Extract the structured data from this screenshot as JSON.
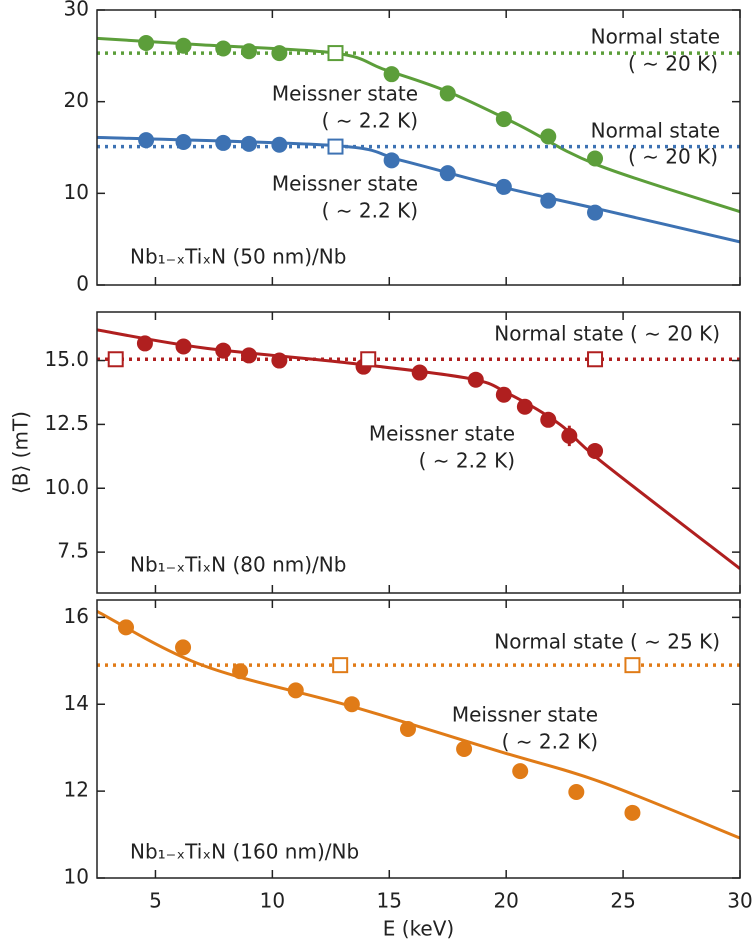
{
  "chart_data": [
    {
      "type": "scatter",
      "xlim": [
        2.5,
        30
      ],
      "xticks": [
        5,
        10,
        15,
        20,
        25,
        30
      ],
      "ylim": [
        0,
        30
      ],
      "yticks": [
        0,
        10,
        20,
        30
      ],
      "annotations": [
        "Normal state",
        "( ∼ 20 K)",
        "Meissner state",
        "( ∼ 2.2 K)",
        "Normal state",
        "( ∼ 20 K)",
        "Meissner state",
        "( ∼ 2.2 K)",
        "Nb₁₋ₓTiₓN (50 nm)/Nb"
      ],
      "series": [
        {
          "style": "line",
          "color": "#5c9e3a",
          "x": [
            2.5,
            7,
            12.7,
            14.8,
            17.5,
            20.5,
            23.9,
            30
          ],
          "values": [
            26.9,
            26.2,
            25.3,
            23.5,
            21.1,
            17.5,
            13.1,
            8.0
          ]
        },
        {
          "style": "dotted",
          "color": "#5c9e3a",
          "x": [
            2.5,
            30
          ],
          "values": [
            25.3,
            25.3
          ]
        },
        {
          "style": "markers",
          "color": "#5c9e3a",
          "x": [
            4.6,
            6.2,
            7.9,
            9.0,
            10.3,
            15.1,
            17.5,
            19.9,
            21.8,
            23.8
          ],
          "values": [
            26.4,
            26.1,
            25.8,
            25.5,
            25.3,
            23.0,
            20.9,
            18.1,
            16.2,
            13.8
          ]
        },
        {
          "style": "open-squares",
          "color": "#5c9e3a",
          "x": [
            12.7
          ],
          "values": [
            25.3
          ]
        },
        {
          "style": "line",
          "color": "#3d72b3",
          "x": [
            2.5,
            12.7,
            15.5,
            19.8,
            24.1,
            30
          ],
          "values": [
            16.1,
            15.2,
            13.6,
            10.7,
            8.2,
            4.7
          ]
        },
        {
          "style": "dotted",
          "color": "#3d72b3",
          "x": [
            2.5,
            30
          ],
          "values": [
            15.1,
            15.1
          ]
        },
        {
          "style": "markers",
          "color": "#3d72b3",
          "x": [
            4.6,
            6.2,
            7.9,
            9.0,
            10.3,
            15.1,
            17.5,
            19.9,
            21.8,
            23.8
          ],
          "values": [
            15.8,
            15.6,
            15.5,
            15.4,
            15.3,
            13.6,
            12.2,
            10.7,
            9.2,
            7.9
          ]
        },
        {
          "style": "open-squares",
          "color": "#3d72b3",
          "x": [
            12.7
          ],
          "values": [
            15.1
          ]
        }
      ]
    },
    {
      "type": "scatter",
      "ylabel": "⟨B⟩ (mT)",
      "xlim": [
        2.5,
        30
      ],
      "xticks": [
        5,
        10,
        15,
        20,
        25,
        30
      ],
      "ylim": [
        5.9,
        16.9
      ],
      "yticks": [
        7.5,
        {
          "value": 10,
          "label": "10.0"
        },
        12.5,
        {
          "value": 15,
          "label": "15.0"
        }
      ],
      "annotations": [
        "Normal state ( ∼ 20 K)",
        "Meissner state",
        "( ∼ 2.2 K)",
        "Nb₁₋ₓTiₓN (80 nm)/Nb"
      ],
      "series": [
        {
          "style": "line",
          "color": "#b01f1f",
          "x": [
            2.5,
            7,
            13.3,
            18.4,
            20.1,
            22.3,
            24.0,
            30
          ],
          "values": [
            16.2,
            15.5,
            14.9,
            14.3,
            13.7,
            12.5,
            11.1,
            6.85
          ]
        },
        {
          "style": "dotted",
          "color": "#b01f1f",
          "x": [
            2.5,
            30
          ],
          "values": [
            15.05,
            15.05
          ]
        },
        {
          "style": "markers",
          "color": "#b01f1f",
          "x": [
            4.55,
            6.2,
            7.9,
            9.0,
            10.3,
            13.9,
            16.3,
            18.7,
            19.9,
            20.8,
            21.8,
            22.7,
            23.8
          ],
          "values": [
            15.67,
            15.55,
            15.39,
            15.2,
            15.0,
            14.76,
            14.53,
            14.25,
            13.66,
            13.19,
            12.68,
            12.05,
            11.46
          ],
          "errors": [
            null,
            null,
            null,
            null,
            null,
            null,
            null,
            null,
            null,
            null,
            null,
            0.4,
            null
          ]
        },
        {
          "style": "open-squares",
          "color": "#b01f1f",
          "x": [
            3.3,
            14.1,
            23.8
          ],
          "values": [
            15.05,
            15.05,
            15.05
          ]
        }
      ]
    },
    {
      "type": "scatter",
      "xlabel": "E (keV)",
      "xlim": [
        2.5,
        30
      ],
      "xticks": [
        5,
        10,
        15,
        20,
        25,
        30
      ],
      "ylim": [
        10,
        16.4
      ],
      "yticks": [
        10,
        12,
        14,
        16
      ],
      "annotations": [
        "Normal state ( ∼ 25 K)",
        "Meissner state",
        "( ∼ 2.2 K)",
        "Nb₁₋ₓTiₓN (160 nm)/Nb"
      ],
      "series": [
        {
          "style": "line",
          "color": "#e07b17",
          "x": [
            2.5,
            7,
            13.4,
            19.8,
            24.1,
            30
          ],
          "values": [
            16.14,
            14.9,
            13.95,
            12.9,
            12.2,
            10.92
          ]
        },
        {
          "style": "dotted",
          "color": "#e07b17",
          "x": [
            2.5,
            30
          ],
          "values": [
            14.9,
            14.9
          ]
        },
        {
          "style": "markers",
          "color": "#e07b17",
          "x": [
            3.74,
            6.18,
            8.62,
            11.0,
            13.4,
            15.8,
            18.2,
            20.6,
            23.0,
            25.4
          ],
          "values": [
            15.77,
            15.31,
            14.76,
            14.32,
            14.0,
            13.43,
            12.97,
            12.46,
            11.98,
            11.5
          ]
        },
        {
          "style": "open-squares",
          "color": "#e07b17",
          "x": [
            12.9,
            25.4
          ],
          "values": [
            14.9,
            14.9
          ]
        }
      ]
    }
  ]
}
